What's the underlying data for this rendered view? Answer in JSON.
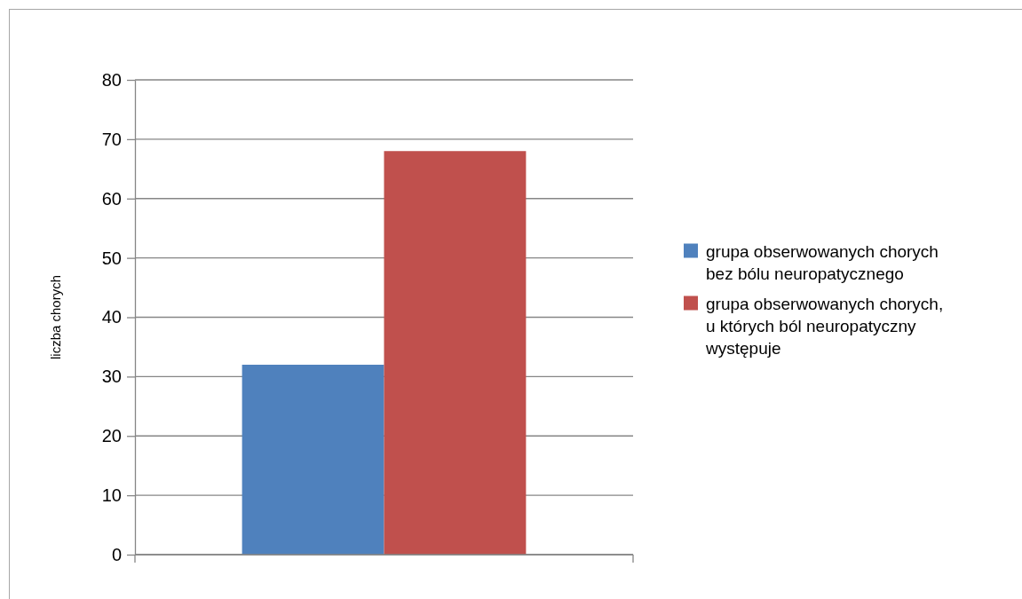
{
  "chart_data": {
    "type": "bar",
    "ylabel": "liczba chorych",
    "categories": [
      null
    ],
    "series": [
      {
        "name": "grupa obserwowanych chorych bez bólu neuropatycznego",
        "color": "#4f81bd",
        "values": [
          32
        ]
      },
      {
        "name": "grupa obserwowanych chorych, u których ból neuropatyczny występuje",
        "color": "#c0504d",
        "values": [
          68
        ]
      }
    ],
    "ylim": [
      0,
      80
    ],
    "yticks": [
      0,
      10,
      20,
      30,
      40,
      50,
      60,
      70,
      80
    ],
    "grid": "y",
    "legend": "right"
  }
}
